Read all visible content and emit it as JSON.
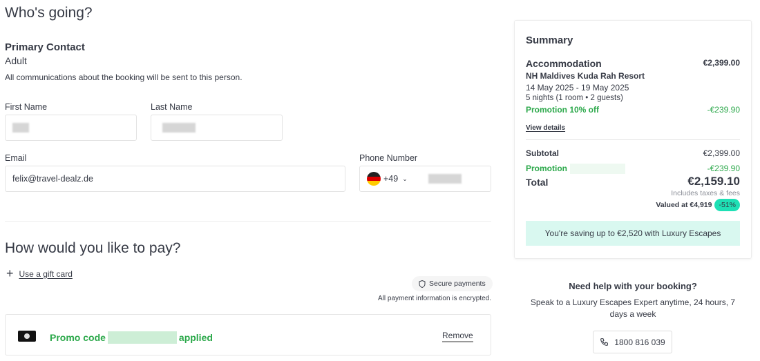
{
  "contact": {
    "heading": "Who's going?",
    "section_title": "Primary Contact",
    "type": "Adult",
    "note": "All communications about the booking will be sent to this person.",
    "first_name_label": "First Name",
    "last_name_label": "Last Name",
    "email_label": "Email",
    "email_value": "felix@travel-dealz.de",
    "phone_label": "Phone Number",
    "phone_code": "+49"
  },
  "payment": {
    "heading": "How would you like to pay?",
    "gift_card": "Use a gift card",
    "secure": "Secure payments",
    "encrypted": "All payment information is encrypted.",
    "promo_prefix": "Promo code",
    "promo_suffix": "applied",
    "remove": "Remove"
  },
  "summary": {
    "title": "Summary",
    "accommodation": "Accommodation",
    "accommodation_price": "€2,399.00",
    "hotel": "NH Maldives Kuda Rah Resort",
    "dates": "14 May 2025 - 19 May 2025",
    "nights": "5 nights (1 room • 2 guests)",
    "promotion_label": "Promotion 10% off",
    "promotion_value": "-€239.90",
    "view_details": "View details",
    "subtotal_label": "Subtotal",
    "subtotal_value": "€2,399.00",
    "promo_label": "Promotion",
    "promo_value": "-€239.90",
    "total_label": "Total",
    "total_value": "€2,159.10",
    "taxes": "Includes taxes & fees",
    "valued": "Valued at €4,919",
    "discount": "-51%",
    "saving": "You're saving up to €2,520 with Luxury Escapes"
  },
  "help": {
    "title": "Need help with your booking?",
    "text": "Speak to a Luxury Escapes Expert anytime, 24 hours, 7 days a week",
    "phone": "1800 816 039"
  },
  "colors": {
    "green": "#2ba84a",
    "badge": "#1ee0b5",
    "saving_bg": "#d9f8f0"
  }
}
